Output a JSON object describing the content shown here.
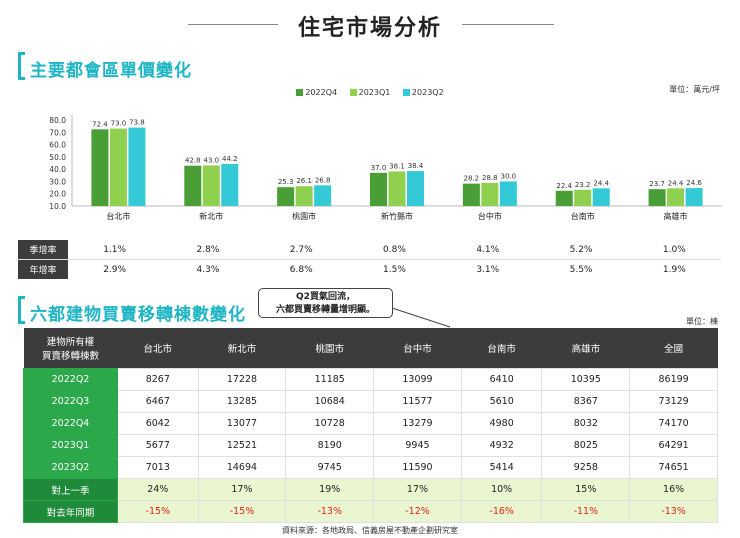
{
  "page": {
    "title": "住宅市場分析",
    "section1_title": "主要都會區單價變化",
    "unit1": "單位：萬元/坪",
    "section2_title": "六都建物買賣移轉棟數變化",
    "unit2": "單位：棟",
    "callout_line1": "Q2買氣回流，",
    "callout_line2": "六都買賣移轉量增明顯。",
    "source": "資料來源：各地政局、信義房屋不動產企劃研究室"
  },
  "chart_data": {
    "type": "bar",
    "categories": [
      "台北市",
      "新北市",
      "桃園市",
      "新竹縣市",
      "台中市",
      "台南市",
      "高雄市"
    ],
    "series": [
      {
        "name": "2022Q4",
        "color": "#4a9e36",
        "values": [
          72.4,
          42.8,
          25.3,
          37.0,
          28.2,
          22.4,
          23.7
        ]
      },
      {
        "name": "2023Q1",
        "color": "#8fd14f",
        "values": [
          73.0,
          43.0,
          26.1,
          38.1,
          28.8,
          23.2,
          24.4
        ]
      },
      {
        "name": "2023Q2",
        "color": "#33c9d6",
        "values": [
          73.8,
          44.2,
          26.8,
          38.4,
          30.0,
          24.4,
          24.6
        ]
      }
    ],
    "ylim": [
      10,
      80
    ],
    "yticks": [
      "80.0",
      "70.0",
      "60.0",
      "50.0",
      "40.0",
      "30.0",
      "20.0",
      "10.0"
    ],
    "value_labels": [
      [
        "72.4",
        "73.0",
        "73.8"
      ],
      [
        "42.8",
        "43.0",
        "44.2"
      ],
      [
        "25.3",
        "26.1",
        "26.8"
      ],
      [
        "37.0",
        "38.1",
        "38.4"
      ],
      [
        "28.2",
        "28.8",
        "30.0"
      ],
      [
        "22.4",
        "23.2",
        "24.4"
      ],
      [
        "23.7",
        "24.4",
        "24.6"
      ]
    ],
    "legend_position": "top-center",
    "grid": false
  },
  "rate_table": {
    "rows": [
      {
        "label": "季增率",
        "values": [
          "1.1%",
          "2.8%",
          "2.7%",
          "0.8%",
          "4.1%",
          "5.2%",
          "1.0%"
        ]
      },
      {
        "label": "年增率",
        "values": [
          "2.9%",
          "4.3%",
          "6.8%",
          "1.5%",
          "3.1%",
          "5.5%",
          "1.9%"
        ]
      }
    ]
  },
  "transfer_table": {
    "header_line1": "建物所有權",
    "header_line2": "買賣移轉棟數",
    "columns": [
      "台北市",
      "新北市",
      "桃園市",
      "台中市",
      "台南市",
      "高雄市",
      "全國"
    ],
    "rows": [
      {
        "label": "2022Q2",
        "values": [
          "8267",
          "17228",
          "11185",
          "13099",
          "6410",
          "10395",
          "86199"
        ]
      },
      {
        "label": "2022Q3",
        "values": [
          "6467",
          "13285",
          "10684",
          "11577",
          "5610",
          "8367",
          "73129"
        ]
      },
      {
        "label": "2022Q4",
        "values": [
          "6042",
          "13077",
          "10728",
          "13279",
          "4980",
          "8032",
          "74170"
        ]
      },
      {
        "label": "2023Q1",
        "values": [
          "5677",
          "12521",
          "8190",
          "9945",
          "4932",
          "8025",
          "64291"
        ]
      },
      {
        "label": "2023Q2",
        "values": [
          "7013",
          "14694",
          "9745",
          "11590",
          "5414",
          "9258",
          "74651"
        ]
      }
    ],
    "qoq": {
      "label": "對上一季",
      "values": [
        "24%",
        "17%",
        "19%",
        "17%",
        "10%",
        "15%",
        "16%"
      ]
    },
    "yoy": {
      "label": "對去年同期",
      "values": [
        "-15%",
        "-15%",
        "-13%",
        "-12%",
        "-16%",
        "-11%",
        "-13%"
      ]
    }
  }
}
